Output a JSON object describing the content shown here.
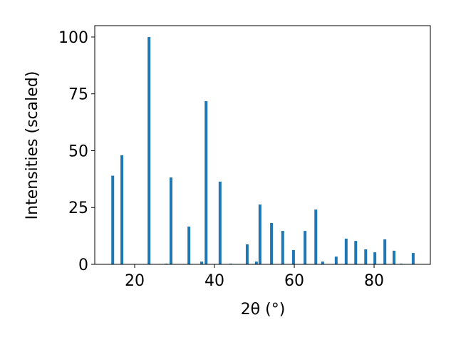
{
  "chart_data": {
    "type": "bar",
    "x_label": "2θ (°)",
    "y_label": "Intensities (scaled)",
    "x": [
      14.5,
      16.8,
      23.6,
      27.9,
      29.1,
      33.6,
      36.8,
      37.9,
      41.4,
      44.1,
      48.2,
      50.5,
      51.4,
      54.3,
      57.1,
      59.8,
      62.7,
      65.4,
      67.1,
      70.5,
      73.0,
      75.4,
      77.9,
      80.2,
      82.7,
      85.0,
      86.8,
      89.8
    ],
    "values": [
      39,
      48,
      100,
      0.3,
      38.2,
      16.6,
      1.2,
      71.8,
      36.4,
      0.3,
      8.8,
      1.2,
      26.3,
      18.2,
      14.7,
      6.3,
      14.7,
      24.1,
      1.2,
      3.4,
      11.3,
      10.3,
      6.6,
      5.3,
      11,
      6,
      0.3,
      5
    ],
    "color": "#1f77b4",
    "xlim": [
      10,
      94.1
    ],
    "ylim": [
      0,
      105
    ],
    "xticks": [
      20,
      40,
      60,
      80
    ],
    "yticks": [
      0,
      25,
      50,
      75,
      100
    ],
    "grid": false
  }
}
